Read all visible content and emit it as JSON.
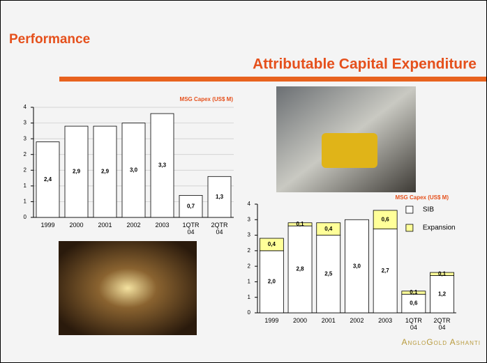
{
  "slide": {
    "section": "Performance",
    "title": "Attributable Capital Expenditure",
    "logo": "AngloGold Ashanti"
  },
  "chart_data": [
    {
      "type": "bar",
      "title": "MSG Capex (US$ M)",
      "categories": [
        "1999",
        "2000",
        "2001",
        "2002",
        "2003",
        "1QTR 04",
        "2QTR 04"
      ],
      "values": [
        2.4,
        2.9,
        2.9,
        3.0,
        3.3,
        0.7,
        1.3
      ],
      "value_labels": [
        "2,4",
        "2,9",
        "2,9",
        "3,0",
        "3,3",
        "0,7",
        "1,3"
      ],
      "color": "#ffffff",
      "ylim": [
        0,
        3.5
      ],
      "yticks": [
        0,
        {
          "value": 0.5,
          "label": "1"
        },
        1,
        {
          "value": 1.5,
          "label": "2"
        },
        2,
        {
          "value": 2.5,
          "label": "3"
        },
        3,
        {
          "value": 3.5,
          "label": "4"
        }
      ],
      "grid": true
    },
    {
      "type": "stacked-bar",
      "title": "MSG Capex (US$ M)",
      "categories": [
        "1999",
        "2000",
        "2001",
        "2002",
        "2003",
        "1QTR 04",
        "2QTR 04"
      ],
      "series": [
        {
          "name": "SIB",
          "color": "#ffffff",
          "values": [
            2.0,
            2.8,
            2.5,
            3.0,
            2.7,
            0.6,
            1.2
          ],
          "value_labels": [
            "2,0",
            "2,8",
            "2,5",
            "3,0",
            "2,7",
            "0,6",
            "1,2"
          ]
        },
        {
          "name": "Expansion",
          "color": "#ffff99",
          "values": [
            0.4,
            0.1,
            0.4,
            null,
            0.6,
            0.1,
            0.1
          ],
          "value_labels": [
            "0,4",
            "0,1",
            "0,4",
            null,
            "0,6",
            "0,1",
            "0,1"
          ]
        }
      ],
      "ylim": [
        0,
        3.5
      ],
      "yticks": [
        0,
        {
          "value": 0.5,
          "label": "1"
        },
        1,
        {
          "value": 1.5,
          "label": "2"
        },
        2,
        {
          "value": 2.5,
          "label": "3"
        },
        3,
        {
          "value": 3.5,
          "label": "4"
        }
      ],
      "grid": false,
      "legend": "upper right"
    }
  ]
}
